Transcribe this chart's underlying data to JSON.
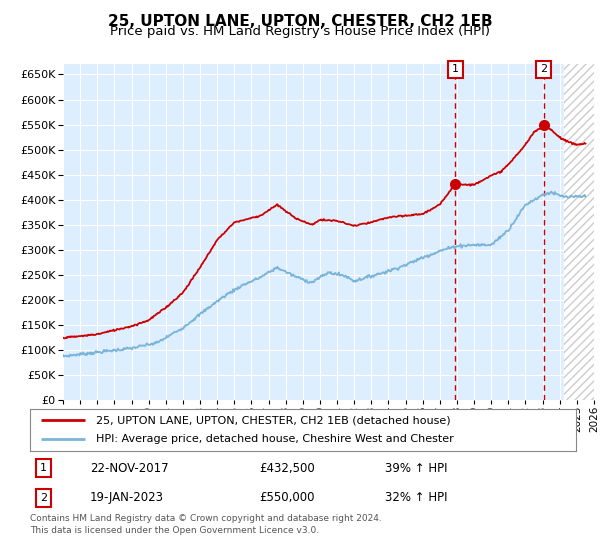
{
  "title": "25, UPTON LANE, UPTON, CHESTER, CH2 1EB",
  "subtitle": "Price paid vs. HM Land Registry's House Price Index (HPI)",
  "ylim": [
    0,
    670000
  ],
  "yticks": [
    0,
    50000,
    100000,
    150000,
    200000,
    250000,
    300000,
    350000,
    400000,
    450000,
    500000,
    550000,
    600000,
    650000
  ],
  "xlim_start": 1995.0,
  "xlim_end": 2026.0,
  "hpi_color": "#7ab4d8",
  "price_color": "#cc0000",
  "bg_plot": "#ddeeff",
  "sale1_date": 2017.896,
  "sale1_price": 432500,
  "sale2_date": 2023.055,
  "sale2_price": 550000,
  "legend_line1": "25, UPTON LANE, UPTON, CHESTER, CH2 1EB (detached house)",
  "legend_line2": "HPI: Average price, detached house, Cheshire West and Chester",
  "annotation1": [
    "1",
    "22-NOV-2017",
    "£432,500",
    "39% ↑ HPI"
  ],
  "annotation2": [
    "2",
    "19-JAN-2023",
    "£550,000",
    "32% ↑ HPI"
  ],
  "footer1": "Contains HM Land Registry data © Crown copyright and database right 2024.",
  "footer2": "This data is licensed under the Open Government Licence v3.0.",
  "future_start": 2024.25,
  "hpi_anchors": [
    [
      1995.0,
      88000
    ],
    [
      1996.0,
      92000
    ],
    [
      1997.5,
      98000
    ],
    [
      1999.0,
      104000
    ],
    [
      2000.5,
      115000
    ],
    [
      2002.0,
      145000
    ],
    [
      2003.5,
      185000
    ],
    [
      2004.5,
      210000
    ],
    [
      2005.5,
      230000
    ],
    [
      2006.5,
      245000
    ],
    [
      2007.5,
      265000
    ],
    [
      2008.5,
      248000
    ],
    [
      2009.5,
      235000
    ],
    [
      2010.5,
      255000
    ],
    [
      2011.5,
      248000
    ],
    [
      2012.0,
      238000
    ],
    [
      2013.0,
      248000
    ],
    [
      2014.0,
      258000
    ],
    [
      2015.0,
      270000
    ],
    [
      2016.0,
      285000
    ],
    [
      2017.0,
      298000
    ],
    [
      2018.0,
      308000
    ],
    [
      2019.0,
      310000
    ],
    [
      2020.0,
      310000
    ],
    [
      2021.0,
      340000
    ],
    [
      2022.0,
      390000
    ],
    [
      2023.0,
      410000
    ],
    [
      2023.5,
      415000
    ],
    [
      2024.0,
      408000
    ],
    [
      2024.5,
      405000
    ],
    [
      2025.5,
      407000
    ]
  ],
  "price_anchors": [
    [
      1995.0,
      125000
    ],
    [
      1996.0,
      128000
    ],
    [
      1997.0,
      132000
    ],
    [
      1998.0,
      140000
    ],
    [
      1999.0,
      148000
    ],
    [
      2000.0,
      160000
    ],
    [
      2001.0,
      185000
    ],
    [
      2002.0,
      215000
    ],
    [
      2003.0,
      265000
    ],
    [
      2004.0,
      320000
    ],
    [
      2005.0,
      355000
    ],
    [
      2006.5,
      368000
    ],
    [
      2007.5,
      390000
    ],
    [
      2008.5,
      365000
    ],
    [
      2009.5,
      350000
    ],
    [
      2010.0,
      360000
    ],
    [
      2011.0,
      358000
    ],
    [
      2012.0,
      348000
    ],
    [
      2013.0,
      355000
    ],
    [
      2014.0,
      365000
    ],
    [
      2015.0,
      368000
    ],
    [
      2016.0,
      372000
    ],
    [
      2017.0,
      390000
    ],
    [
      2017.896,
      432500
    ],
    [
      2018.5,
      430000
    ],
    [
      2019.0,
      430000
    ],
    [
      2019.5,
      440000
    ],
    [
      2020.0,
      448000
    ],
    [
      2020.5,
      455000
    ],
    [
      2021.0,
      470000
    ],
    [
      2021.5,
      490000
    ],
    [
      2022.0,
      510000
    ],
    [
      2022.5,
      535000
    ],
    [
      2023.0,
      545000
    ],
    [
      2023.055,
      550000
    ],
    [
      2023.2,
      548000
    ],
    [
      2023.5,
      540000
    ],
    [
      2023.8,
      530000
    ],
    [
      2024.0,
      525000
    ],
    [
      2024.5,
      515000
    ],
    [
      2025.0,
      510000
    ],
    [
      2025.5,
      512000
    ]
  ]
}
